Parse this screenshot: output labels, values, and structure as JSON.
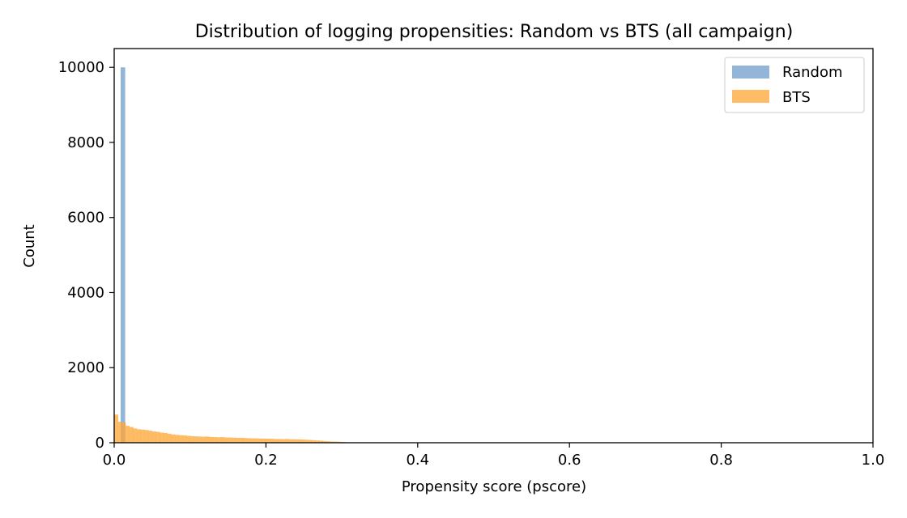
{
  "chart_data": {
    "type": "bar",
    "title": "Distribution of logging propensities: Random vs BTS (all campaign)",
    "xlabel": "Propensity score (pscore)",
    "ylabel": "Count",
    "xlim": [
      0,
      1
    ],
    "ylim": [
      0,
      10500
    ],
    "x_ticks": [
      "0.0",
      "0.2",
      "0.4",
      "0.6",
      "0.8",
      "1.0"
    ],
    "y_ticks": [
      "0",
      "2000",
      "4000",
      "6000",
      "8000",
      "10000"
    ],
    "legend_position": "top-right",
    "grid": false,
    "series": [
      {
        "name": "Random",
        "color": "#6f9ccb",
        "bins": [
          {
            "x0": 0.0085,
            "x1": 0.0145,
            "value": 10000
          }
        ]
      },
      {
        "name": "BTS",
        "color": "#ffa534",
        "bin_start": 0.0,
        "bin_width": 0.005,
        "values": [
          750,
          560,
          540,
          450,
          420,
          380,
          360,
          350,
          340,
          320,
          300,
          290,
          270,
          260,
          240,
          220,
          210,
          200,
          195,
          185,
          175,
          170,
          165,
          160,
          165,
          155,
          150,
          145,
          150,
          140,
          140,
          135,
          130,
          130,
          125,
          120,
          118,
          115,
          112,
          110,
          108,
          105,
          100,
          98,
          95,
          100,
          92,
          90,
          88,
          85,
          80,
          75,
          70,
          60,
          55,
          45,
          38,
          32,
          30,
          25,
          20,
          12,
          8,
          5,
          4,
          3,
          2,
          1
        ]
      }
    ]
  }
}
